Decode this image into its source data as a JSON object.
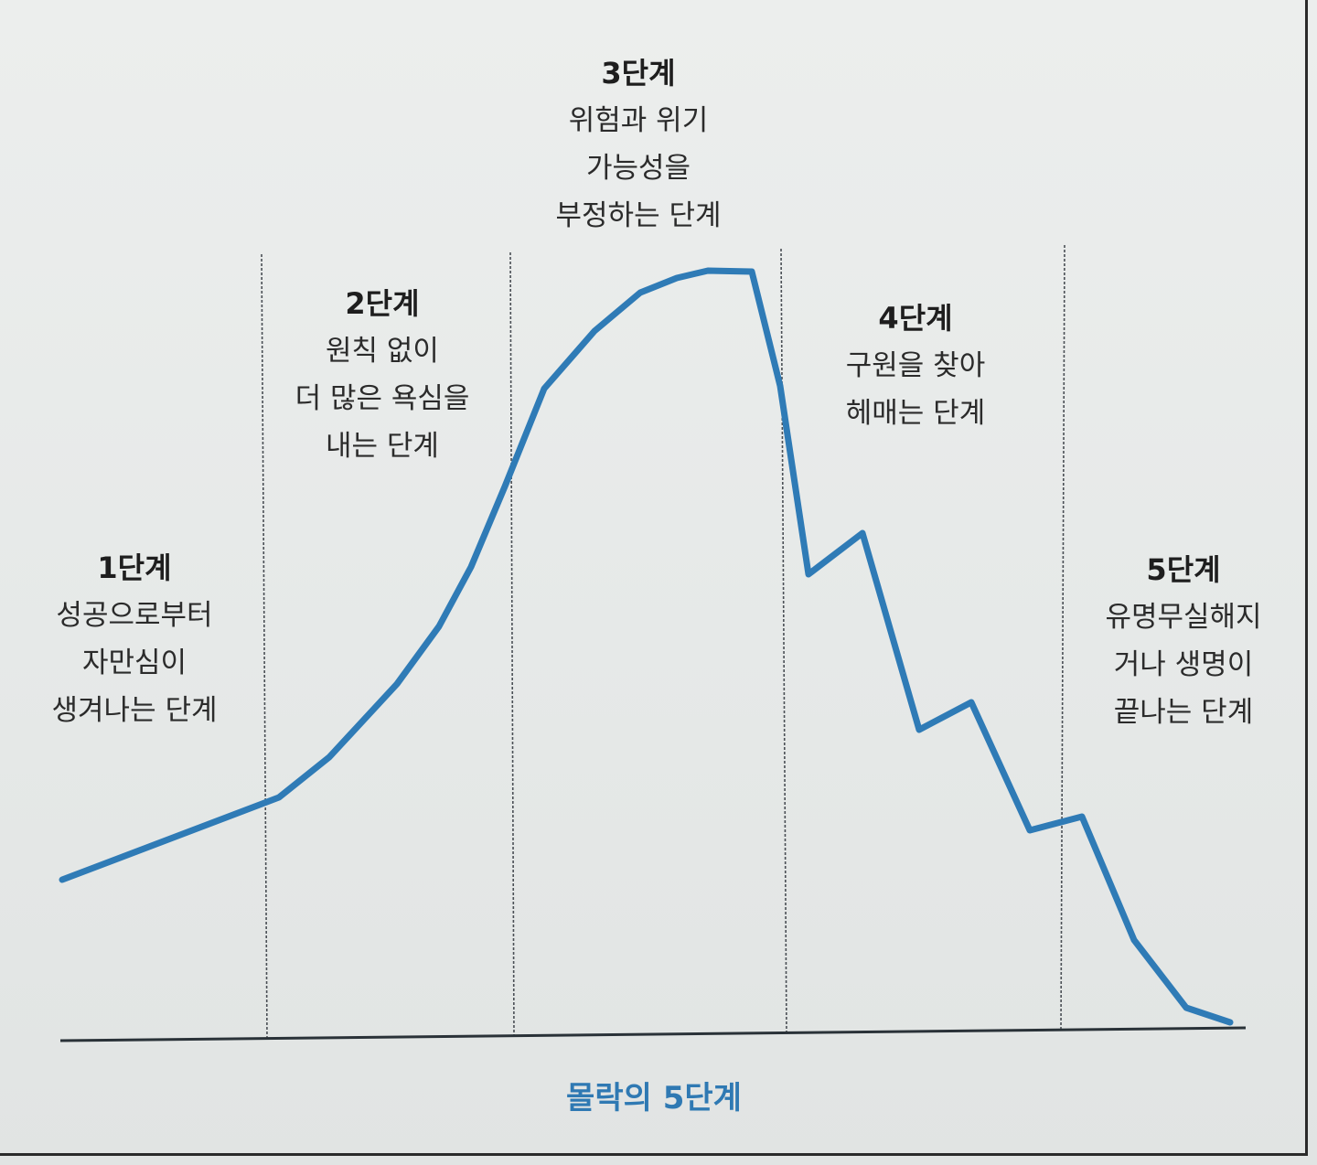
{
  "caption": "몰락의 5단계",
  "colors": {
    "curve": "#2f7bb6",
    "caption": "#2f79b3",
    "divider": "#4a4f55",
    "baseline": "#2a3238"
  },
  "stages": [
    {
      "title": "1단계",
      "lines": [
        "성공으로부터",
        "자만심이",
        "생겨나는 단계"
      ]
    },
    {
      "title": "2단계",
      "lines": [
        "원칙 없이",
        "더 많은 욕심을",
        "내는 단계"
      ]
    },
    {
      "title": "3단계",
      "lines": [
        "위험과 위기",
        "가능성을",
        "부정하는 단계"
      ]
    },
    {
      "title": "4단계",
      "lines": [
        "구원을 찾아",
        "헤매는 단계"
      ]
    },
    {
      "title": "5단계",
      "lines": [
        "유명무실해지",
        "거나 생명이",
        "끝나는 단계"
      ]
    }
  ]
}
